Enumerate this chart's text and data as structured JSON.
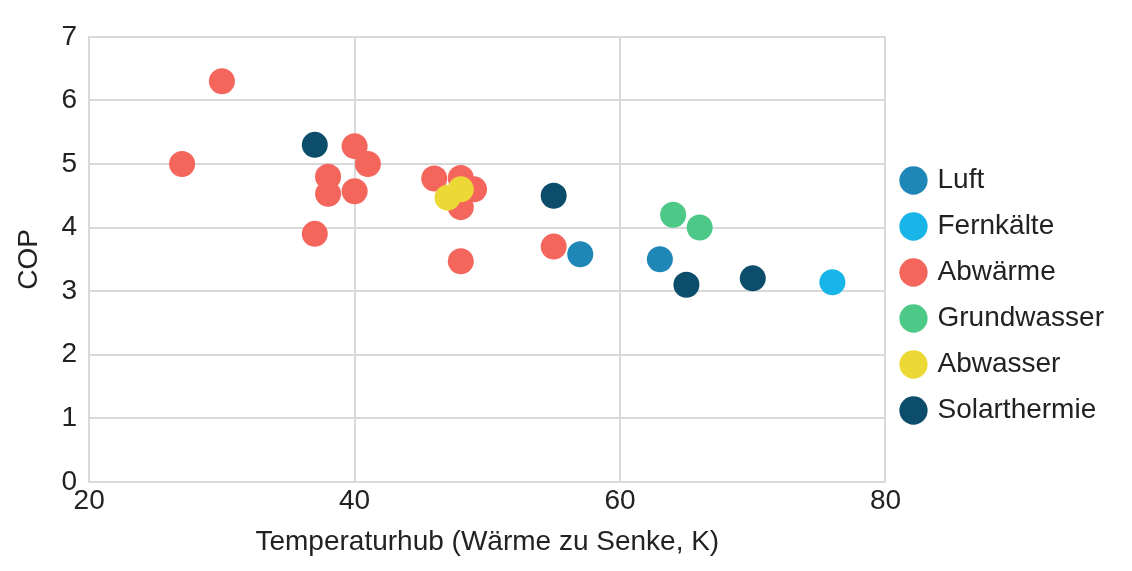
{
  "chart_data": {
    "type": "scatter",
    "xlabel": "Temperaturhub (Wärme zu Senke, K)",
    "ylabel": "COP",
    "xlim": [
      20,
      80
    ],
    "xticks": [
      20,
      40,
      60,
      80
    ],
    "ylim": [
      0,
      7
    ],
    "yticks": [
      0,
      1,
      2,
      3,
      4,
      5,
      6,
      7
    ],
    "grid": true,
    "legend": "right",
    "marker": "circle",
    "series": [
      {
        "name": "Luft",
        "color": "#1f86b8",
        "x": [
          57,
          63
        ],
        "values": [
          3.58,
          3.5
        ]
      },
      {
        "name": "Fernkälte",
        "color": "#17b5e8",
        "x": [
          76
        ],
        "values": [
          3.14
        ]
      },
      {
        "name": "Abwärme",
        "color": "#f4665c",
        "x": [
          30,
          27,
          40,
          41,
          38,
          38,
          40,
          37,
          46,
          48,
          49,
          48,
          48,
          55
        ],
        "values": [
          6.3,
          5.0,
          5.28,
          5.0,
          4.8,
          4.53,
          4.57,
          3.9,
          4.77,
          4.78,
          4.6,
          4.32,
          3.47,
          3.7
        ]
      },
      {
        "name": "Grundwasser",
        "color": "#4cc987",
        "x": [
          64,
          66
        ],
        "values": [
          4.2,
          4.0
        ]
      },
      {
        "name": "Abwasser",
        "color": "#ecd935",
        "x": [
          47,
          48
        ],
        "values": [
          4.47,
          4.6
        ]
      },
      {
        "name": "Solarthermie",
        "color": "#0b4d6a",
        "x": [
          37,
          55,
          65,
          70
        ],
        "values": [
          5.3,
          4.5,
          3.1,
          3.2
        ]
      }
    ]
  }
}
